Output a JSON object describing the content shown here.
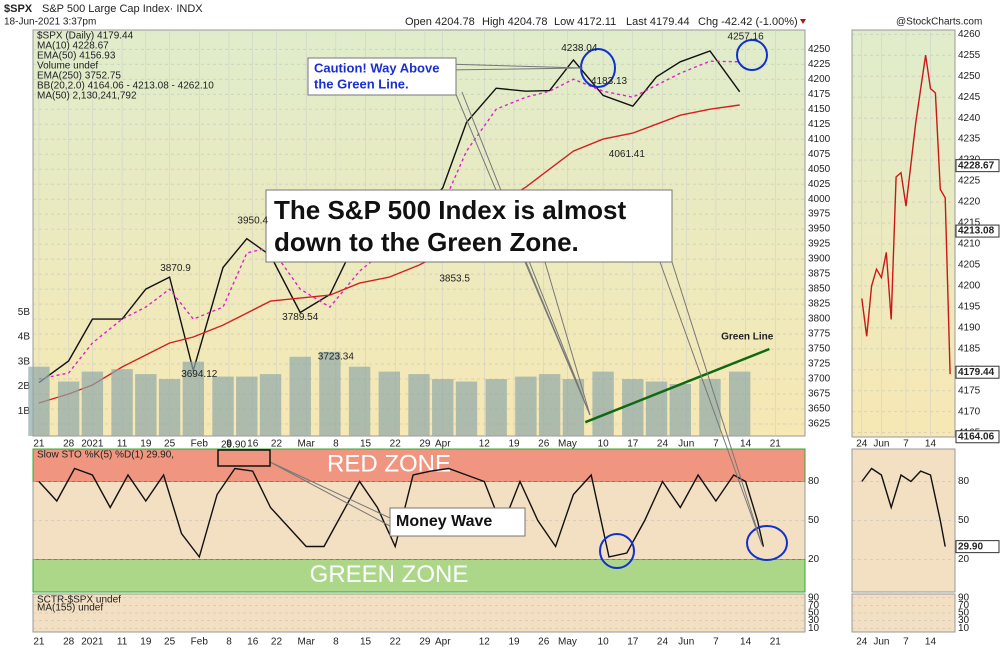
{
  "header": {
    "symbol": "$SPX",
    "name": "S&P 500 Large Cap Index· INDX",
    "datetime": "18-Jun-2021 3:37pm",
    "quote": [
      "Open 4204.78",
      "High 4204.78",
      "Low 4172.11",
      "Last 4179.44",
      "Chg -42.42 (-1.00%)"
    ],
    "source": "@StockCharts.com"
  },
  "callouts": {
    "caution": [
      "Caution! Way Above",
      "the Green Line."
    ],
    "main": [
      "The S&P 500 Index is almost",
      "down to the Green Zone."
    ],
    "money_wave": "Money Wave"
  },
  "chart_data": [
    {
      "type": "line",
      "xlim": [
        -1,
        129
      ],
      "ylim": [
        3605,
        4282
      ],
      "yticks": [
        3625,
        3650,
        3675,
        3700,
        3725,
        3750,
        3775,
        3800,
        3825,
        3850,
        3875,
        3900,
        3925,
        3950,
        3975,
        4000,
        4025,
        4050,
        4075,
        4100,
        4125,
        4150,
        4175,
        4200,
        4225,
        4250
      ],
      "y2lim": [
        0,
        16400000000
      ],
      "y2ticks": [
        {
          "value": 1000000000,
          "label": "1B"
        },
        {
          "value": 2000000000,
          "label": "2B"
        },
        {
          "value": 3000000000,
          "label": "3B"
        },
        {
          "value": 4000000000,
          "label": "4B"
        },
        {
          "value": 5000000000,
          "label": "5B"
        }
      ],
      "xticks": [
        {
          "value": 0,
          "label": "21"
        },
        {
          "value": 5,
          "label": "28"
        },
        {
          "value": 9,
          "label": "2021"
        },
        {
          "value": 14,
          "label": "11"
        },
        {
          "value": 18,
          "label": "19"
        },
        {
          "value": 22,
          "label": "25"
        },
        {
          "value": 27,
          "label": "Feb"
        },
        {
          "value": 32,
          "label": "8"
        },
        {
          "value": 36,
          "label": "16"
        },
        {
          "value": 40,
          "label": "22"
        },
        {
          "value": 45,
          "label": "Mar"
        },
        {
          "value": 50,
          "label": "8"
        },
        {
          "value": 55,
          "label": "15"
        },
        {
          "value": 60,
          "label": "22"
        },
        {
          "value": 65,
          "label": "29"
        },
        {
          "value": 68,
          "label": "Apr"
        },
        {
          "value": 75,
          "label": "12"
        },
        {
          "value": 80,
          "label": "19"
        },
        {
          "value": 85,
          "label": "26"
        },
        {
          "value": 89,
          "label": "May"
        },
        {
          "value": 95,
          "label": "10"
        },
        {
          "value": 100,
          "label": "17"
        },
        {
          "value": 105,
          "label": "24"
        },
        {
          "value": 109,
          "label": "Jun"
        },
        {
          "value": 114,
          "label": "7"
        },
        {
          "value": 119,
          "label": "14"
        },
        {
          "value": 124,
          "label": "21"
        }
      ],
      "x": [
        0,
        5,
        9,
        14,
        18,
        22,
        26,
        31,
        35,
        39,
        44,
        49,
        54,
        59,
        64,
        68,
        72,
        77,
        82,
        86,
        90,
        95,
        100,
        104,
        108,
        113,
        118
      ],
      "series": [
        {
          "name": "$SPX (Daily) 4179.44",
          "color": "#111111",
          "values": [
            3694,
            3730,
            3800,
            3800,
            3850,
            3870,
            3714,
            3886,
            3934,
            3906,
            3811,
            3841,
            3943,
            3913,
            3974,
            4019,
            4128,
            4185,
            4180,
            4181,
            4232,
            4173,
            4155,
            4204,
            4229,
            4247,
            4179
          ]
        },
        {
          "name": "MA(10) 4228.67",
          "color": "#dd22cc",
          "dash": true,
          "values": [
            3700,
            3710,
            3760,
            3800,
            3820,
            3850,
            3800,
            3820,
            3910,
            3920,
            3850,
            3820,
            3880,
            3920,
            3940,
            3990,
            4080,
            4150,
            4170,
            4180,
            4200,
            4180,
            4170,
            4190,
            4210,
            4230,
            4229
          ]
        },
        {
          "name": "EMA(50) 4156.93",
          "color": "#d42020",
          "values": [
            3660,
            3675,
            3690,
            3720,
            3740,
            3760,
            3770,
            3790,
            3810,
            3830,
            3835,
            3840,
            3860,
            3870,
            3890,
            3910,
            3950,
            3990,
            4020,
            4050,
            4080,
            4100,
            4110,
            4125,
            4140,
            4150,
            4157
          ]
        },
        {
          "name": "Volume undef",
          "color": "#8fa8a8",
          "bars": true,
          "axis": "y2",
          "values": [
            2800000000,
            2200000000,
            2600000000,
            2700000000,
            2500000000,
            2300000000,
            3000000000,
            2400000000,
            2400000000,
            2500000000,
            3200000000,
            3400000000,
            2800000000,
            2600000000,
            2500000000,
            2300000000,
            2200000000,
            2300000000,
            2400000000,
            2500000000,
            2300000000,
            2600000000,
            2300000000,
            2200000000,
            2100000000,
            2300000000,
            2600000000
          ]
        },
        {
          "name": "Green Line",
          "color": "#0e6a12",
          "end_label": true,
          "x": [
            92,
            123
          ],
          "values": [
            3628,
            3750
          ]
        }
      ],
      "legend_notes": [
        "EMA(250) 3752.75",
        "BB(20,2.0) 4164.06 - 4213.08 - 4262.10",
        "MA(50) 2,130,241,792"
      ],
      "point_labels": [
        {
          "x": 91,
          "y": 4238.04
        },
        {
          "x": 96,
          "y": 4183.13
        },
        {
          "x": 99,
          "y": 4061.41
        },
        {
          "x": 119,
          "y": 4257.16
        },
        {
          "x": 36,
          "y": 3950.4
        },
        {
          "x": 23,
          "y": 3870.9
        },
        {
          "x": 27,
          "y": 3694.12
        },
        {
          "x": 44,
          "y": 3789.54
        },
        {
          "x": 50,
          "y": 3723.34
        },
        {
          "x": 70,
          "y": 3853.5
        }
      ]
    },
    {
      "type": "line",
      "xlim": [
        -1,
        129
      ],
      "ylim": [
        -5,
        105
      ],
      "yticks": [
        20,
        50,
        80
      ],
      "legend_notes": [
        "Slow STO %K(5) %D(1) 29.90,",
        "29.90"
      ],
      "zones": [
        {
          "label": "RED ZONE",
          "from": 80,
          "to": 105,
          "color": "#ef8a74"
        },
        {
          "label": "GREEN ZONE",
          "from": -5,
          "to": 20,
          "color": "#9fd67e"
        }
      ],
      "x": [
        0,
        3,
        6,
        9,
        12,
        15,
        18,
        21,
        24,
        27,
        30,
        33,
        36,
        39,
        42,
        45,
        48,
        51,
        54,
        57,
        60,
        63,
        66,
        69,
        72,
        75,
        78,
        81,
        84,
        87,
        90,
        93,
        96,
        99,
        102,
        105,
        108,
        111,
        114,
        117,
        119,
        121,
        122
      ],
      "series": [
        {
          "name": "%K",
          "color": "#111111",
          "hide_legend": true,
          "values": [
            80,
            65,
            90,
            85,
            60,
            85,
            65,
            85,
            40,
            22,
            70,
            90,
            88,
            60,
            45,
            30,
            30,
            55,
            80,
            60,
            30,
            85,
            88,
            90,
            85,
            80,
            45,
            80,
            50,
            30,
            70,
            85,
            22,
            25,
            50,
            80,
            60,
            85,
            65,
            85,
            80,
            50,
            29.9
          ]
        }
      ]
    },
    {
      "type": "line",
      "xlim": [
        -1,
        129
      ],
      "ylim": [
        0,
        100
      ],
      "yticks": [
        10,
        30,
        50,
        70,
        90
      ],
      "legend_notes": [
        "SCTR-$SPX undef",
        "MA(155) undef"
      ]
    },
    {
      "type": "line",
      "xlim": [
        103,
        124
      ],
      "ylim": [
        4164,
        4261
      ],
      "yticks": [
        4165,
        4170,
        4175,
        4180,
        4185,
        4190,
        4195,
        4200,
        4205,
        4210,
        4215,
        4220,
        4225,
        4230,
        4235,
        4240,
        4245,
        4250,
        4255,
        4260
      ],
      "xticks": [
        {
          "value": 105,
          "label": "24"
        },
        {
          "value": 109,
          "label": "Jun"
        },
        {
          "value": 114,
          "label": "7"
        },
        {
          "value": 119,
          "label": "14"
        }
      ],
      "x": [
        105,
        106,
        107,
        108,
        109,
        110,
        111,
        112,
        113,
        114,
        115,
        116,
        117,
        118,
        119,
        120,
        121,
        122,
        123
      ],
      "series": [
        {
          "name": "close",
          "color": "#c81818",
          "hide_legend": true,
          "values": [
            4197,
            4188,
            4200,
            4204,
            4202,
            4208,
            4192,
            4226,
            4227,
            4219,
            4229,
            4239,
            4247,
            4255,
            4247,
            4246,
            4223,
            4221,
            4179
          ]
        }
      ],
      "axis_labels": [
        4228.67,
        4213.08,
        4179.44,
        4164.06
      ]
    },
    {
      "type": "line",
      "xlim": [
        103,
        124
      ],
      "ylim": [
        -5,
        105
      ],
      "yticks": [
        20,
        50,
        80
      ],
      "x": [
        105,
        107,
        109,
        111,
        113,
        115,
        117,
        119,
        121,
        122
      ],
      "series": [
        {
          "name": "%K",
          "color": "#111111",
          "hide_legend": true,
          "values": [
            80,
            90,
            85,
            60,
            85,
            80,
            88,
            85,
            50,
            29.9
          ]
        }
      ],
      "axis_labels": [
        {
          "value": 29.9,
          "label": "29.90"
        }
      ]
    },
    {
      "type": "line",
      "xlim": [
        103,
        124
      ],
      "ylim": [
        0,
        100
      ],
      "yticks": [
        10,
        30,
        50,
        70,
        90
      ]
    }
  ]
}
